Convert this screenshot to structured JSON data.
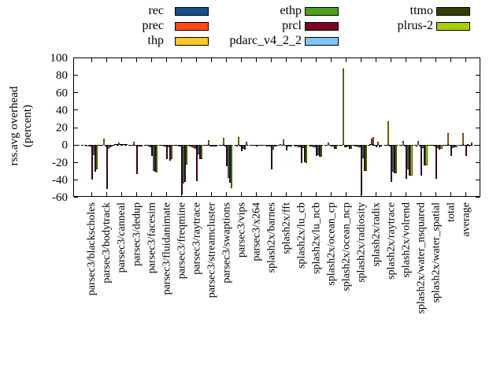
{
  "chart_data": {
    "type": "bar",
    "title": "",
    "ylabel": "rss.avg overhead (percent)",
    "ylabel_lines": [
      "rss.avg overhead",
      "(percent)"
    ],
    "ylim": [
      -60,
      100
    ],
    "yticks": [
      -60,
      -40,
      -20,
      0,
      20,
      40,
      60,
      80,
      100
    ],
    "zero_axis": "dashed",
    "legend_position": "top-center, 3 columns",
    "legend_columns": [
      [
        "rec",
        "prec",
        "thp"
      ],
      [
        "ethp",
        "prcl",
        "pdarc_v4_2_2"
      ],
      [
        "ttmo",
        "plrus-2"
      ]
    ],
    "categories": [
      "parsec3/blackscholes",
      "parsec3/bodytrack",
      "parsec3/canneal",
      "parsec3/dedup",
      "parsec3/facesim",
      "parsec3/fluidanimate",
      "parsec3/freqmine",
      "parsec3/raytrace",
      "parsec3/streamcluster",
      "parsec3/swaptions",
      "parsec3/vips",
      "parsec3/x264",
      "splash2x/barnes",
      "splash2x/fft",
      "splash2x/lu_cb",
      "splash2x/lu_ncb",
      "splash2x/ocean_cp",
      "splash2x/ocean_ncp",
      "splash2x/radiosity",
      "splash2x/radix",
      "splash2x/raytrace",
      "splash2x/volrend",
      "splash2x/water_nsquared",
      "splash2x/water_spatial",
      "total",
      "average"
    ],
    "series": [
      {
        "name": "rec",
        "color": "#16508e",
        "values": [
          -1,
          -1,
          1,
          -1,
          -1,
          -1,
          -1,
          -2,
          -1,
          -1,
          -1,
          -1,
          -1,
          1,
          -2,
          -2,
          -1,
          -1,
          -2,
          1,
          -1,
          -1,
          -1,
          -1,
          -1,
          -1
        ]
      },
      {
        "name": "prec",
        "color": "#ff4a0e",
        "values": [
          -2,
          -1,
          1,
          -1,
          -1,
          -1,
          -1,
          -3,
          -1,
          -1,
          -2,
          -1,
          -2,
          -1,
          -2,
          -2,
          -1,
          -1,
          -2,
          7,
          -1,
          -1,
          -2,
          -1,
          -1,
          -1
        ]
      },
      {
        "name": "thp",
        "color": "#ffc62c",
        "values": [
          -2,
          7,
          2,
          3,
          -2,
          -2,
          -2,
          -4,
          5,
          8,
          9,
          -1,
          -2,
          6,
          -3,
          -3,
          2,
          87,
          -3,
          9,
          27,
          4,
          4,
          -1,
          13,
          13
        ]
      },
      {
        "name": "ethp",
        "color": "#4fa11d",
        "values": [
          -2,
          -2,
          1,
          -1,
          -3,
          -2,
          -2,
          -5,
          -2,
          -2,
          -2,
          -1,
          -2,
          -1,
          -3,
          -3,
          -1,
          -3,
          -3,
          -1,
          -2,
          -2,
          -2,
          -2,
          -1,
          -1
        ]
      },
      {
        "name": "prcl",
        "color": "#7a0622",
        "values": [
          -40,
          -51,
          1,
          -34,
          -13,
          -17,
          -57,
          -42,
          -2,
          -25,
          -8,
          -2,
          -28,
          -7,
          -21,
          -13,
          -2,
          -3,
          -58,
          -3,
          -43,
          -39,
          -36,
          -39,
          -13,
          -13
        ]
      },
      {
        "name": "pdarc_v4_2_2",
        "color": "#80c4f8",
        "values": [
          -12,
          -5,
          1,
          -2,
          -30,
          -3,
          -45,
          -11,
          -2,
          -38,
          -5,
          -1,
          -6,
          -2,
          -4,
          -12,
          -2,
          -2,
          -16,
          3,
          -31,
          -28,
          -4,
          -4,
          -4,
          1
        ]
      },
      {
        "name": "ttmo",
        "color": "#334003",
        "values": [
          -31,
          -3,
          1,
          -2,
          -31,
          -18,
          -43,
          -17,
          -2,
          -44,
          -6,
          -1,
          -2,
          -2,
          -20,
          -14,
          -5,
          -5,
          -30,
          -3,
          -33,
          -36,
          -24,
          -6,
          -3,
          -2
        ]
      },
      {
        "name": "plrus-2",
        "color": "#a6ce00",
        "values": [
          -28,
          -2,
          1,
          -2,
          -32,
          -17,
          -23,
          -17,
          -2,
          -50,
          3,
          -1,
          -2,
          -2,
          -21,
          -14,
          -5,
          -5,
          -30,
          -2,
          -33,
          -36,
          -24,
          -5,
          -3,
          2
        ]
      }
    ]
  }
}
